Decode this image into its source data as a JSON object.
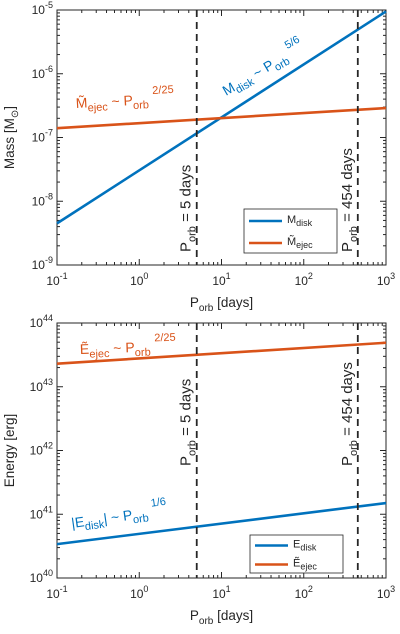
{
  "chart_data": [
    {
      "type": "line",
      "xscale": "log",
      "yscale": "log",
      "xlim": [
        0.1,
        1000
      ],
      "ylim": [
        1e-09,
        1e-05
      ],
      "xlabel": {
        "main": "P",
        "sub": "orb",
        "rest": " [days]"
      },
      "ylabel": {
        "main": "Mass [M",
        "sub": "⊙",
        "rest": "]"
      },
      "xticks": [
        {
          "value": 0.1,
          "base": "10",
          "exp": "-1"
        },
        {
          "value": 1,
          "base": "10",
          "exp": "0"
        },
        {
          "value": 10,
          "base": "10",
          "exp": "1"
        },
        {
          "value": 100,
          "base": "10",
          "exp": "2"
        },
        {
          "value": 1000,
          "base": "10",
          "exp": "3"
        }
      ],
      "yticks": [
        {
          "value": 1e-09,
          "base": "10",
          "exp": "-9"
        },
        {
          "value": 1e-08,
          "base": "10",
          "exp": "-8"
        },
        {
          "value": 1e-07,
          "base": "10",
          "exp": "-7"
        },
        {
          "value": 1e-06,
          "base": "10",
          "exp": "-6"
        },
        {
          "value": 1e-05,
          "base": "10",
          "exp": "-5"
        }
      ],
      "series": [
        {
          "name": "M_disk",
          "color": "#0072bd",
          "x": [
            0.1,
            1000
          ],
          "y": [
            4.5e-09,
            9.5e-06
          ]
        },
        {
          "name": "M̃_ejec",
          "color": "#d95319",
          "x": [
            0.1,
            1000
          ],
          "y": [
            1.4e-07,
            2.9e-07
          ]
        }
      ],
      "legend": {
        "placement": "bottom-right",
        "entries": [
          {
            "main": "M",
            "sub": "disk",
            "color": "#0072bd"
          },
          {
            "main": "M̃",
            "sub": "ejec",
            "color": "#d95319"
          }
        ]
      },
      "vlines": [
        {
          "x": 5,
          "parts": [
            "P",
            "orb",
            " = 5 days"
          ]
        },
        {
          "x": 454,
          "parts": [
            "P",
            "orb",
            " = 454 days"
          ]
        }
      ],
      "annotations": [
        {
          "color": "#0072bd",
          "parts": [
            "M",
            "disk",
            " ~ P",
            "orb",
            "5/6"
          ]
        },
        {
          "color": "#d95319",
          "parts": [
            "M̃",
            "ejec",
            " ~ P",
            "orb",
            "2/25"
          ]
        }
      ]
    },
    {
      "type": "line",
      "xscale": "log",
      "yscale": "log",
      "xlim": [
        0.1,
        1000
      ],
      "ylim": [
        1e+40,
        1e+44
      ],
      "xlabel": {
        "main": "P",
        "sub": "orb",
        "rest": " [days]"
      },
      "ylabel": {
        "main": "Energy [erg]",
        "sub": "",
        "rest": ""
      },
      "xticks": [
        {
          "value": 0.1,
          "base": "10",
          "exp": "-1"
        },
        {
          "value": 1,
          "base": "10",
          "exp": "0"
        },
        {
          "value": 10,
          "base": "10",
          "exp": "1"
        },
        {
          "value": 100,
          "base": "10",
          "exp": "2"
        },
        {
          "value": 1000,
          "base": "10",
          "exp": "3"
        }
      ],
      "yticks": [
        {
          "value": 1e+40,
          "base": "10",
          "exp": "40"
        },
        {
          "value": 1e+41,
          "base": "10",
          "exp": "41"
        },
        {
          "value": 1e+42,
          "base": "10",
          "exp": "42"
        },
        {
          "value": 1e+43,
          "base": "10",
          "exp": "43"
        },
        {
          "value": 1e+44,
          "base": "10",
          "exp": "44"
        }
      ],
      "series": [
        {
          "name": "E_disk",
          "color": "#0072bd",
          "x": [
            0.1,
            1000
          ],
          "y": [
            3.4e+40,
            1.5e+41
          ]
        },
        {
          "name": "Ẽ_ejec",
          "color": "#d95319",
          "x": [
            0.1,
            1000
          ],
          "y": [
            2.3e+43,
            4.9e+43
          ]
        }
      ],
      "legend": {
        "placement": "bottom-right",
        "entries": [
          {
            "main": "E",
            "sub": "disk",
            "color": "#0072bd"
          },
          {
            "main": "Ẽ",
            "sub": "ejec",
            "color": "#d95319"
          }
        ]
      },
      "vlines": [
        {
          "x": 5,
          "parts": [
            "P",
            "orb",
            " = 5 days"
          ]
        },
        {
          "x": 454,
          "parts": [
            "P",
            "orb",
            " = 454 days"
          ]
        }
      ],
      "annotations": [
        {
          "color": "#d95319",
          "parts": [
            "Ẽ",
            "ejec",
            " ~ P",
            "orb",
            "2/25"
          ]
        },
        {
          "color": "#0072bd",
          "parts": [
            "|E",
            "disk",
            "| ~ P",
            "orb",
            "1/6"
          ]
        }
      ]
    }
  ]
}
